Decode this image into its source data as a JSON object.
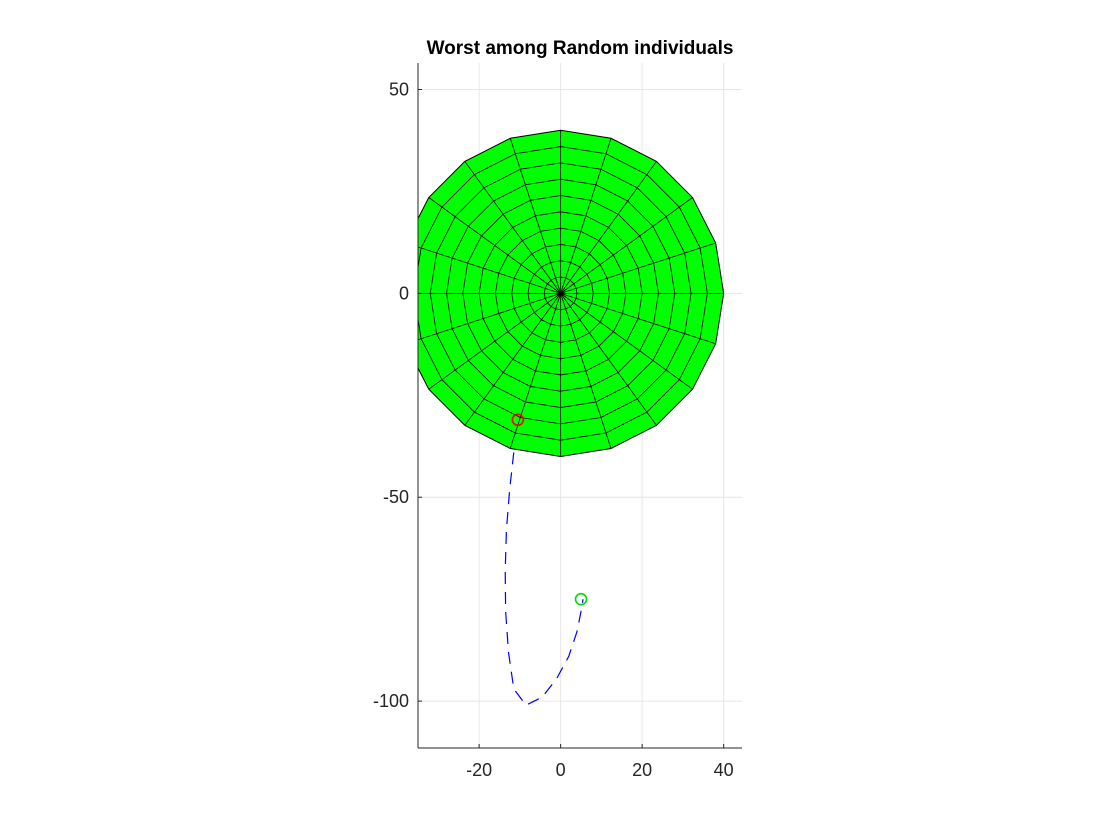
{
  "chart_data": {
    "type": "line",
    "title": "Worst among Random individuals",
    "xlabel": "",
    "ylabel": "",
    "xlim": [
      -35,
      44.5
    ],
    "ylim": [
      -111.5,
      56.5
    ],
    "x_ticks": [
      -20,
      0,
      20,
      40
    ],
    "y_ticks": [
      50,
      0,
      -50,
      -100
    ],
    "x_tick_labels": [
      "-20",
      "0",
      "20",
      "40"
    ],
    "y_tick_labels": [
      "50",
      "0",
      "-50",
      "-100"
    ],
    "grid": true,
    "disk": {
      "center": [
        0,
        0
      ],
      "radius": 40,
      "rings": 10,
      "spokes": 20,
      "fill_color": "#00ff00",
      "edge_color": "#000000"
    },
    "series": [
      {
        "style": "dashed",
        "color": "#0000ff",
        "x": [
          -11.5,
          -12.5,
          -13.3,
          -13.6,
          -13.5,
          -12.8,
          -11.5,
          -8.5,
          -4.5,
          -1,
          2,
          4,
          5,
          5.5
        ],
        "y": [
          -39,
          -48,
          -58,
          -68,
          -78,
          -88,
          -97,
          -101,
          -99,
          -94.5,
          -89,
          -83,
          -78,
          -75
        ]
      }
    ],
    "markers": [
      {
        "shape": "circle",
        "color": "#ff0000",
        "x": -10.5,
        "y": -31
      },
      {
        "shape": "circle",
        "color": "#00dd00",
        "x": 5,
        "y": -75
      }
    ],
    "colors": {
      "grid": "#e6e6e6",
      "axis": "#262626"
    }
  }
}
